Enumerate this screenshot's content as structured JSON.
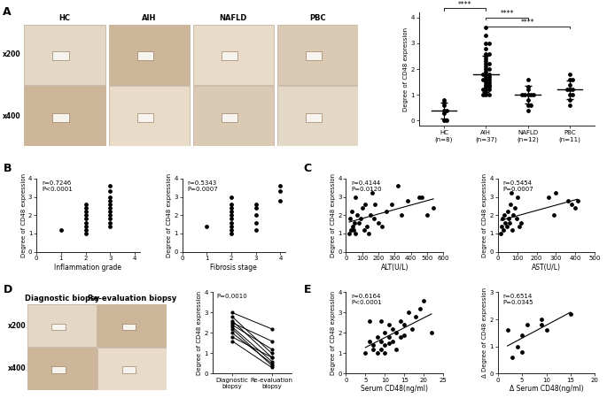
{
  "image_panels": [
    {
      "panel": "A",
      "columns": [
        "HC",
        "AIH",
        "NAFLD",
        "PBC"
      ],
      "rows": [
        "x200",
        "x400"
      ]
    },
    {
      "panel": "D",
      "columns": [
        "Diagnostic biopsy",
        "Re-evaluation biopsy"
      ],
      "rows": [
        "x200",
        "x400"
      ]
    }
  ],
  "chart_data": [
    {
      "type": "dot",
      "ylabel": "Degree of CD48 expression",
      "color": "#000000",
      "categories": [
        "HC\n(n=8)",
        "AIH\n(n=37)",
        "NAFLD\n(n=12)",
        "PBC\n(n=11)"
      ],
      "values": [
        [
          0.8,
          0.7,
          0.6,
          0.4,
          0.4,
          0.3,
          0.0,
          0.0
        ],
        [
          3.6,
          3.3,
          3.0,
          3.0,
          2.8,
          2.6,
          2.6,
          2.5,
          2.4,
          2.3,
          2.2,
          2.2,
          2.1,
          2.0,
          2.0,
          1.9,
          1.8,
          1.8,
          1.8,
          1.7,
          1.7,
          1.6,
          1.6,
          1.6,
          1.5,
          1.5,
          1.4,
          1.4,
          1.3,
          1.3,
          1.2,
          1.2,
          1.2,
          1.1,
          1.0,
          1.0,
          1.0
        ],
        [
          1.6,
          1.3,
          1.2,
          1.0,
          1.0,
          1.0,
          1.0,
          1.0,
          0.8,
          0.6,
          0.6,
          0.4
        ],
        [
          1.8,
          1.6,
          1.6,
          1.4,
          1.2,
          1.2,
          1.2,
          1.0,
          1.0,
          0.8,
          0.6
        ]
      ],
      "means": [
        0.4,
        1.8,
        1.0,
        1.2
      ],
      "sds": [
        0.3,
        0.7,
        0.35,
        0.35
      ],
      "comparisons": [
        {
          "groups": [
            1,
            3
          ],
          "label": "****"
        },
        {
          "groups": [
            1,
            2
          ],
          "label": "****"
        },
        {
          "groups": [
            0,
            1
          ],
          "label": "****"
        }
      ],
      "ylim": [
        -0.2,
        4.2
      ],
      "yticks": [
        0,
        1,
        2,
        3,
        4
      ]
    },
    {
      "type": "scatter",
      "panel": "B",
      "xlabel": "Inflammation grade",
      "ylabel": "Degree of CD48 expression",
      "annotation": "r=0.7246\nP<0.0001",
      "color": "#000000",
      "x": [
        1,
        2,
        2,
        2,
        2,
        2,
        2,
        2,
        2,
        2,
        3,
        3,
        3,
        3,
        3,
        3,
        3,
        3,
        3,
        3,
        3
      ],
      "values": [
        1.2,
        1.0,
        1.2,
        1.4,
        1.6,
        1.8,
        2.0,
        2.2,
        2.4,
        2.6,
        1.4,
        1.6,
        1.8,
        2.0,
        2.2,
        2.4,
        2.6,
        2.8,
        3.0,
        3.3,
        3.6
      ],
      "xlim": [
        0,
        4.2
      ],
      "xticks": [
        0,
        1,
        2,
        3,
        4
      ],
      "ylim": [
        0,
        4
      ],
      "yticks": [
        0,
        1,
        2,
        3,
        4
      ]
    },
    {
      "type": "scatter",
      "xlabel": "Fibrosis stage",
      "ylabel": "Degree of CD48 expression",
      "annotation": "r=0.5343\nP=0.0007",
      "color": "#000000",
      "x": [
        1,
        2,
        2,
        2,
        2,
        2,
        2,
        2,
        2,
        2,
        2,
        3,
        3,
        3,
        3,
        3,
        4,
        4,
        4
      ],
      "values": [
        1.4,
        1.0,
        1.2,
        1.4,
        1.6,
        1.8,
        2.0,
        2.2,
        2.4,
        2.6,
        3.0,
        1.2,
        1.6,
        2.0,
        2.4,
        2.6,
        2.8,
        3.3,
        3.6
      ],
      "xlim": [
        0,
        4.2
      ],
      "xticks": [
        0,
        1,
        2,
        3,
        4
      ],
      "ylim": [
        0,
        4
      ],
      "yticks": [
        0,
        1,
        2,
        3,
        4
      ]
    },
    {
      "type": "regression",
      "panel": "C",
      "xlabel": "ALT(U/L)",
      "ylabel": "Degree of CD48 expression",
      "annotation": "r=0.4144\nP=0.0120",
      "color": "#000000",
      "x": [
        20,
        30,
        25,
        40,
        50,
        35,
        60,
        70,
        80,
        90,
        100,
        110,
        120,
        130,
        140,
        150,
        160,
        170,
        180,
        200,
        220,
        250,
        280,
        320,
        340,
        380,
        450,
        470,
        500,
        540,
        60,
        45
      ],
      "values": [
        1.0,
        1.2,
        1.8,
        1.4,
        1.6,
        2.2,
        1.0,
        2.0,
        1.6,
        1.8,
        2.4,
        1.2,
        2.6,
        1.4,
        1.0,
        2.0,
        3.2,
        1.8,
        2.6,
        1.6,
        1.4,
        2.2,
        2.6,
        3.6,
        2.0,
        2.8,
        3.0,
        3.0,
        2.0,
        2.4,
        3.0,
        1.2
      ],
      "xlim": [
        0,
        600
      ],
      "xticks": [
        0,
        100,
        200,
        300,
        400,
        500,
        600
      ],
      "ylim": [
        0,
        4
      ],
      "yticks": [
        0,
        1,
        2,
        3,
        4
      ]
    },
    {
      "type": "regression",
      "xlabel": "AST(U/L)",
      "ylabel": "Degree of CD48 expression",
      "annotation": "r=0.5454\nP=0.0007",
      "color": "#000000",
      "x": [
        15,
        20,
        25,
        30,
        35,
        40,
        45,
        50,
        55,
        60,
        65,
        70,
        75,
        80,
        90,
        95,
        100,
        110,
        120,
        260,
        290,
        300,
        360,
        380,
        400,
        410
      ],
      "values": [
        1.0,
        1.4,
        1.8,
        1.2,
        2.0,
        1.6,
        1.4,
        2.2,
        1.8,
        1.6,
        2.6,
        3.2,
        1.2,
        2.0,
        2.4,
        1.8,
        3.0,
        1.4,
        1.6,
        3.0,
        2.0,
        3.2,
        2.8,
        2.6,
        2.4,
        2.8
      ],
      "xlim": [
        0,
        500
      ],
      "xticks": [
        0,
        100,
        200,
        300,
        400,
        500
      ],
      "ylim": [
        0,
        4
      ],
      "yticks": [
        0,
        1,
        2,
        3,
        4
      ]
    },
    {
      "type": "paired",
      "ylabel": "Degree of CD48 expression",
      "annotation": "P=0.0010",
      "color": "#000000",
      "categories": [
        "Diagnostic biopsy",
        "Re-evaluation biopsy"
      ],
      "values": [
        [
          3.0,
          2.8,
          2.6,
          2.4,
          2.3,
          2.2,
          2.0,
          1.8,
          1.6,
          2.5
        ],
        [
          2.2,
          1.0,
          0.8,
          1.2,
          0.6,
          0.4,
          0.5,
          0.8,
          0.3,
          1.6
        ]
      ],
      "ylim": [
        0,
        4
      ],
      "yticks": [
        0,
        1,
        2,
        3,
        4
      ]
    },
    {
      "type": "regression",
      "panel": "E",
      "xlabel": "Serum CD48(ng/ml)",
      "ylabel": "Degree of CD48 expression",
      "annotation": "r=0.6164\nP<0.0001",
      "color": "#000000",
      "x": [
        5,
        6,
        7,
        7,
        8,
        8,
        9,
        9,
        10,
        10,
        10,
        11,
        11,
        12,
        12,
        13,
        13,
        14,
        14,
        15,
        16,
        17,
        18,
        19,
        20,
        22,
        9,
        11,
        6,
        15
      ],
      "values": [
        1.0,
        1.6,
        1.2,
        1.4,
        1.0,
        1.8,
        1.2,
        1.6,
        1.4,
        2.0,
        1.0,
        1.8,
        2.4,
        1.6,
        2.2,
        2.0,
        1.2,
        2.6,
        1.8,
        2.4,
        3.0,
        2.2,
        2.8,
        3.2,
        3.6,
        2.0,
        2.6,
        1.5,
        2.6,
        1.9
      ],
      "xlim": [
        0,
        25
      ],
      "xticks": [
        0,
        5,
        10,
        15,
        20,
        25
      ],
      "ylim": [
        0,
        4
      ],
      "yticks": [
        0,
        1,
        2,
        3,
        4
      ]
    },
    {
      "type": "regression",
      "xlabel": "Δ Serum CD48(ng/ml)",
      "ylabel": "Δ Degree of CD48 expression",
      "annotation": "r=0.6514\nP=0.0345",
      "color": "#000000",
      "x": [
        2,
        3,
        4,
        5,
        5,
        6,
        9,
        9,
        10,
        15
      ],
      "values": [
        1.6,
        0.6,
        1.0,
        1.4,
        0.8,
        1.8,
        1.8,
        2.0,
        1.6,
        2.2
      ],
      "xlim": [
        0,
        20
      ],
      "xticks": [
        0,
        5,
        10,
        15,
        20
      ],
      "ylim": [
        0,
        3
      ],
      "yticks": [
        0,
        1,
        2,
        3
      ]
    }
  ]
}
